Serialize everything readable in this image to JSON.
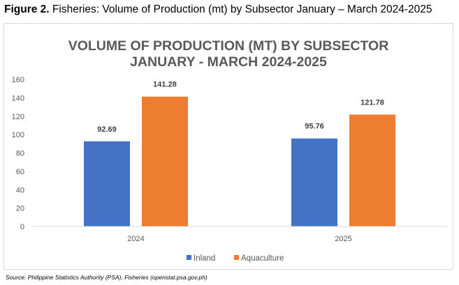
{
  "figure": {
    "label": "Figure 2.",
    "text": " Fisheries: Volume of Production (mt) by Subsector January – March 2024-2025"
  },
  "source": "Source:  Philippine Statistics Authority (PSA), Fisheries (openstat.psa.gov.ph)",
  "chart_data": {
    "type": "bar",
    "title_lines": [
      "VOLUME OF PRODUCTION (MT) BY SUBSECTOR",
      "JANUARY - MARCH 2024-2025"
    ],
    "categories": [
      "2024",
      "2025"
    ],
    "series": [
      {
        "name": "Inland",
        "values": [
          92.69,
          95.76
        ],
        "color": "#4472c4"
      },
      {
        "name": "Aquaculture",
        "values": [
          141.28,
          121.78
        ],
        "color": "#ed7d31"
      }
    ],
    "y_ticks": [
      0,
      20,
      40,
      60,
      80,
      100,
      120,
      140,
      160
    ],
    "ylim": [
      0,
      160
    ],
    "grid": false,
    "legend_position": "bottom",
    "data_labels": true
  }
}
